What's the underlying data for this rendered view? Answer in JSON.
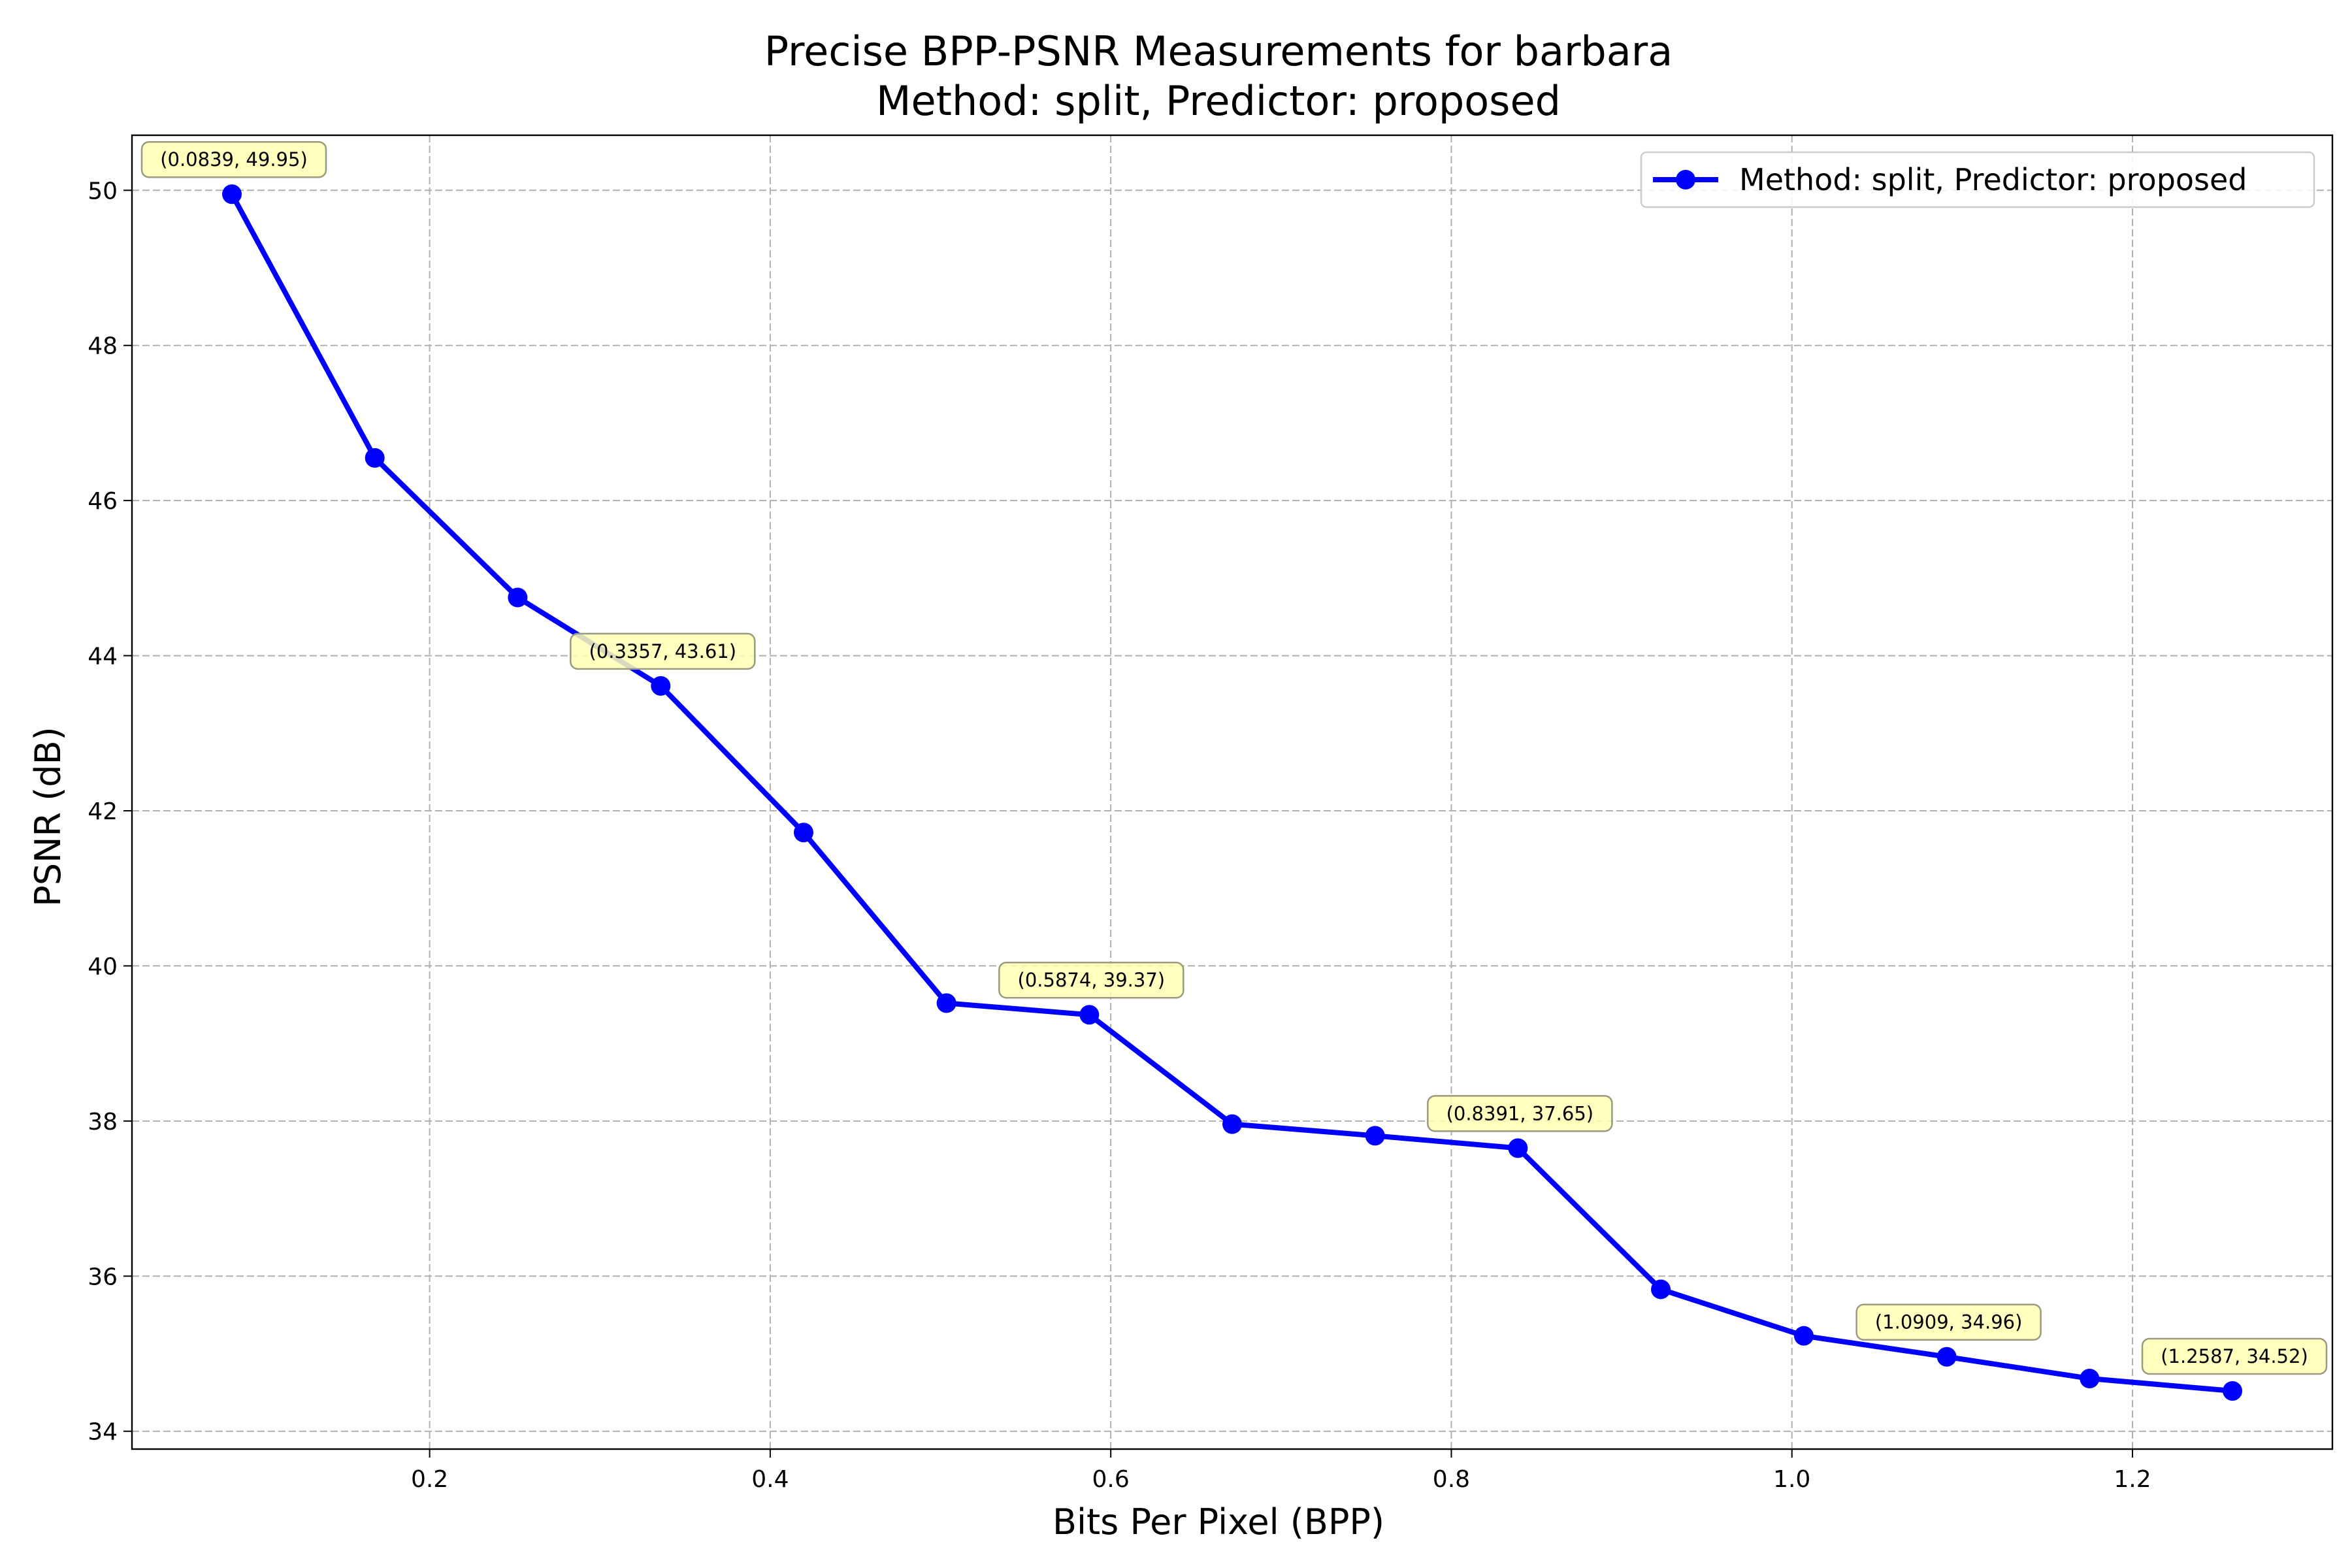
{
  "chart_data": {
    "type": "line",
    "title": "Precise BPP-PSNR Measurements for barbara",
    "subtitle": "Method: split, Predictor: proposed",
    "xlabel": "Bits Per Pixel (BPP)",
    "ylabel": "PSNR (dB)",
    "xlim": [
      0.0252,
      1.3174
    ],
    "ylim": [
      33.77,
      50.71
    ],
    "xticks": [
      0.2,
      0.4,
      0.6,
      0.8,
      1.0,
      1.2
    ],
    "xtick_labels": [
      "0.2",
      "0.4",
      "0.6",
      "0.8",
      "1.0",
      "1.2"
    ],
    "yticks": [
      34,
      36,
      38,
      40,
      42,
      44,
      46,
      48,
      50
    ],
    "ytick_labels": [
      "34",
      "36",
      "38",
      "40",
      "42",
      "44",
      "46",
      "48",
      "50"
    ],
    "grid": true,
    "legend_position": "top-right",
    "series": [
      {
        "name": "Method: split, Predictor: proposed",
        "color": "#0000ff",
        "marker": "circle",
        "x": [
          0.0839,
          0.1678,
          0.2517,
          0.3357,
          0.4196,
          0.5035,
          0.5874,
          0.6713,
          0.7552,
          0.8391,
          0.923,
          1.007,
          1.0909,
          1.1748,
          1.2587
        ],
        "y": [
          49.95,
          46.55,
          44.75,
          43.61,
          41.72,
          39.52,
          39.37,
          37.96,
          37.81,
          37.65,
          35.83,
          35.23,
          34.96,
          34.68,
          34.52
        ]
      }
    ],
    "annotations": [
      {
        "text": "(0.0839, 49.95)",
        "x": 0.0839,
        "y": 49.95
      },
      {
        "text": "(0.3357, 43.61)",
        "x": 0.3357,
        "y": 43.61
      },
      {
        "text": "(0.5874, 39.37)",
        "x": 0.5874,
        "y": 39.37
      },
      {
        "text": "(0.8391, 37.65)",
        "x": 0.8391,
        "y": 37.65
      },
      {
        "text": "(1.0909, 34.96)",
        "x": 1.0909,
        "y": 34.96
      },
      {
        "text": "(1.2587, 34.52)",
        "x": 1.2587,
        "y": 34.52
      }
    ],
    "annotation_box_color": "#ffffb3",
    "grid_color": "#b0b0b0"
  }
}
